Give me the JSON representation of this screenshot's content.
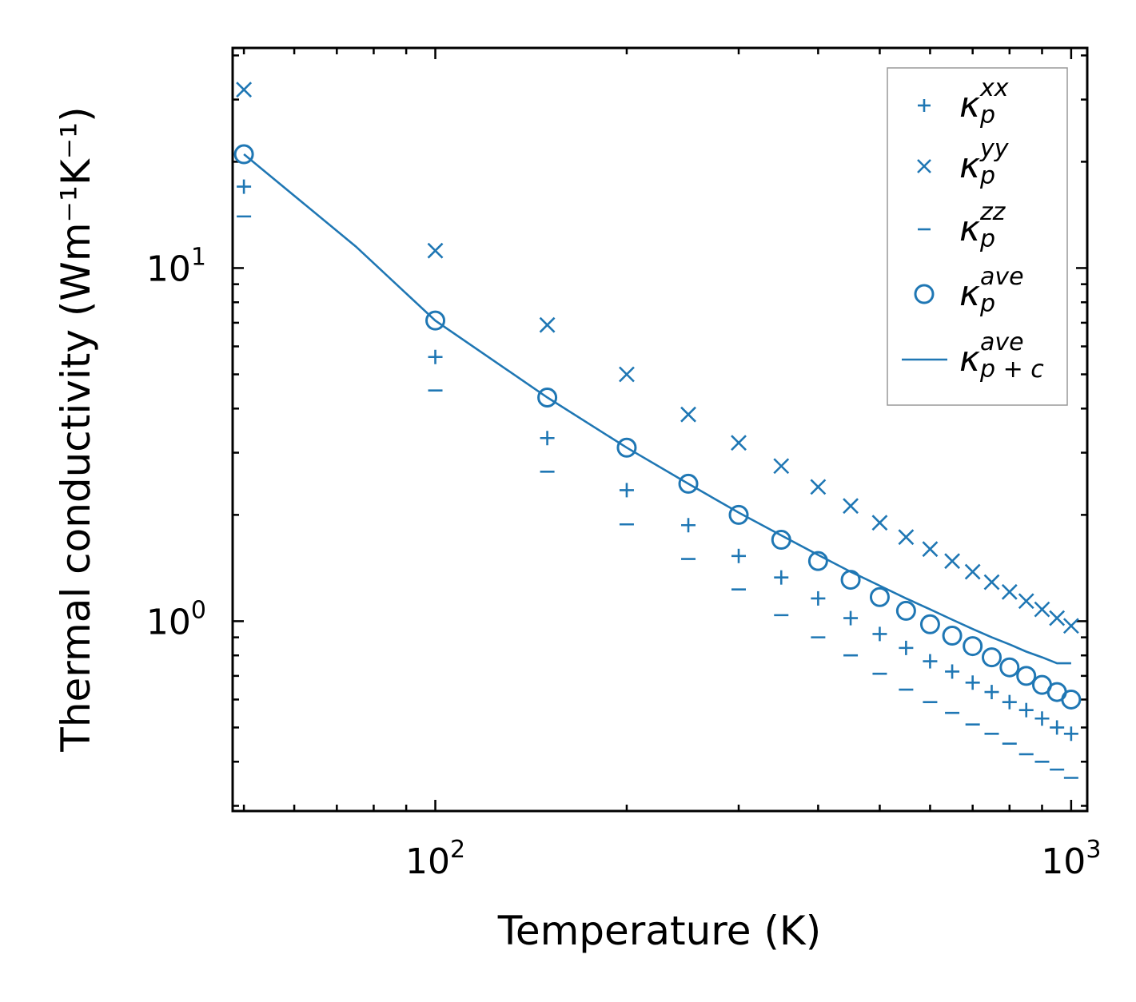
{
  "chart_data": {
    "type": "scatter",
    "xscale": "log",
    "yscale": "log",
    "xlim": [
      48,
      1060
    ],
    "ylim": [
      0.29,
      42
    ],
    "xlabel": "Temperature (K)",
    "ylabel": "Thermal conductivity (Wm⁻¹K⁻¹)",
    "color": "#1f77b4",
    "x_ticks": [
      {
        "base": "10",
        "exp": "2",
        "value": 100
      },
      {
        "base": "10",
        "exp": "3",
        "value": 1000
      }
    ],
    "y_ticks": [
      {
        "base": "10",
        "exp": "0",
        "value": 1
      },
      {
        "base": "10",
        "exp": "1",
        "value": 10
      }
    ],
    "series": [
      {
        "name": "kappa_p^xx",
        "marker": "+",
        "legend": {
          "base": "κ",
          "sub": "p",
          "sup": "xx"
        },
        "x": [
          50,
          100,
          150,
          200,
          250,
          300,
          350,
          400,
          450,
          500,
          550,
          600,
          650,
          700,
          750,
          800,
          850,
          900,
          950,
          1000
        ],
        "y": [
          17.0,
          5.6,
          3.3,
          2.35,
          1.87,
          1.53,
          1.33,
          1.16,
          1.02,
          0.92,
          0.84,
          0.77,
          0.72,
          0.67,
          0.63,
          0.59,
          0.56,
          0.53,
          0.5,
          0.48
        ]
      },
      {
        "name": "kappa_p^yy",
        "marker": "x",
        "legend": {
          "base": "κ",
          "sub": "p",
          "sup": "yy"
        },
        "x": [
          50,
          100,
          150,
          200,
          250,
          300,
          350,
          400,
          450,
          500,
          550,
          600,
          650,
          700,
          750,
          800,
          850,
          900,
          950,
          1000
        ],
        "y": [
          32.0,
          11.2,
          6.9,
          5.0,
          3.85,
          3.2,
          2.75,
          2.4,
          2.12,
          1.9,
          1.73,
          1.6,
          1.48,
          1.38,
          1.29,
          1.21,
          1.14,
          1.08,
          1.02,
          0.97
        ]
      },
      {
        "name": "kappa_p^zz",
        "marker": "_",
        "legend": {
          "base": "κ",
          "sub": "p",
          "sup": "zz"
        },
        "x": [
          50,
          100,
          150,
          200,
          250,
          300,
          350,
          400,
          450,
          500,
          550,
          600,
          650,
          700,
          750,
          800,
          850,
          900,
          950,
          1000
        ],
        "y": [
          14.0,
          4.5,
          2.65,
          1.88,
          1.5,
          1.23,
          1.04,
          0.9,
          0.8,
          0.71,
          0.64,
          0.59,
          0.55,
          0.51,
          0.48,
          0.45,
          0.42,
          0.4,
          0.38,
          0.36
        ]
      },
      {
        "name": "kappa_p^ave",
        "marker": "o",
        "legend": {
          "base": "κ",
          "sub": "p",
          "sup": "ave"
        },
        "x": [
          50,
          100,
          150,
          200,
          250,
          300,
          350,
          400,
          450,
          500,
          550,
          600,
          650,
          700,
          750,
          800,
          850,
          900,
          950,
          1000
        ],
        "y": [
          21.0,
          7.1,
          4.3,
          3.1,
          2.45,
          2.0,
          1.7,
          1.48,
          1.31,
          1.17,
          1.07,
          0.98,
          0.91,
          0.85,
          0.79,
          0.74,
          0.7,
          0.66,
          0.63,
          0.6
        ]
      },
      {
        "name": "kappa_p+c^ave",
        "marker": "line",
        "legend": {
          "base": "κ",
          "sub": "p + c",
          "sup": "ave"
        },
        "x": [
          50,
          75,
          100,
          150,
          200,
          250,
          300,
          350,
          400,
          450,
          500,
          550,
          600,
          650,
          700,
          750,
          800,
          850,
          900,
          950,
          1000
        ],
        "y": [
          21.0,
          11.5,
          7.1,
          4.3,
          3.1,
          2.45,
          2.03,
          1.75,
          1.54,
          1.38,
          1.26,
          1.16,
          1.08,
          1.01,
          0.95,
          0.9,
          0.86,
          0.82,
          0.79,
          0.76,
          0.76
        ]
      }
    ]
  }
}
